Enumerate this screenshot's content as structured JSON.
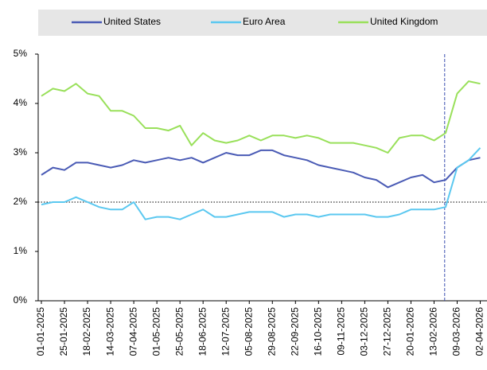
{
  "chart_data": {
    "type": "line",
    "x": [
      "2025-01-01",
      "2025-01-13",
      "2025-01-25",
      "2025-02-06",
      "2025-02-18",
      "2025-03-02",
      "2025-03-14",
      "2025-03-26",
      "2025-04-07",
      "2025-04-19",
      "2025-05-01",
      "2025-05-13",
      "2025-05-25",
      "2025-06-06",
      "2025-06-18",
      "2025-06-30",
      "2025-07-12",
      "2025-07-24",
      "2025-08-05",
      "2025-08-17",
      "2025-08-29",
      "2025-09-10",
      "2025-09-22",
      "2025-10-04",
      "2025-10-16",
      "2025-10-28",
      "2025-11-09",
      "2025-11-21",
      "2025-12-03",
      "2025-12-15",
      "2025-12-27",
      "2026-01-08",
      "2026-01-20",
      "2026-02-01",
      "2026-02-13",
      "2026-02-25",
      "2026-03-09",
      "2026-03-21",
      "2026-04-02"
    ],
    "series": [
      {
        "name": "United States",
        "color": "#4a5bb5",
        "values": [
          2.55,
          2.7,
          2.65,
          2.8,
          2.8,
          2.75,
          2.7,
          2.75,
          2.85,
          2.8,
          2.85,
          2.9,
          2.85,
          2.9,
          2.8,
          2.9,
          3.0,
          2.95,
          2.95,
          3.05,
          3.05,
          2.95,
          2.9,
          2.85,
          2.75,
          2.7,
          2.65,
          2.6,
          2.5,
          2.45,
          2.3,
          2.4,
          2.5,
          2.55,
          2.4,
          2.45,
          2.7,
          2.85,
          2.9
        ]
      },
      {
        "name": "Euro Area",
        "color": "#5bc8f0",
        "values": [
          1.95,
          2.0,
          2.0,
          2.1,
          2.0,
          1.9,
          1.85,
          1.85,
          2.0,
          1.65,
          1.7,
          1.7,
          1.65,
          1.75,
          1.85,
          1.7,
          1.7,
          1.75,
          1.8,
          1.8,
          1.8,
          1.7,
          1.75,
          1.75,
          1.7,
          1.75,
          1.75,
          1.75,
          1.75,
          1.7,
          1.7,
          1.75,
          1.85,
          1.85,
          1.85,
          1.9,
          2.7,
          2.85,
          3.1
        ]
      },
      {
        "name": "United Kingdom",
        "color": "#99e05a",
        "values": [
          4.15,
          4.3,
          4.25,
          4.4,
          4.2,
          4.15,
          3.85,
          3.85,
          3.75,
          3.5,
          3.5,
          3.45,
          3.55,
          3.15,
          3.4,
          3.25,
          3.2,
          3.25,
          3.35,
          3.25,
          3.35,
          3.35,
          3.3,
          3.35,
          3.3,
          3.2,
          3.2,
          3.2,
          3.15,
          3.1,
          3.0,
          3.3,
          3.35,
          3.35,
          3.25,
          3.4,
          4.2,
          4.45,
          4.4
        ]
      }
    ],
    "xlim": [
      "2025-01-01",
      "2026-04-09"
    ],
    "xticks": [
      {
        "value": "2025-01-01",
        "label": "01-01-2025"
      },
      {
        "value": "2025-01-25",
        "label": "25-01-2025"
      },
      {
        "value": "2025-02-18",
        "label": "18-02-2025"
      },
      {
        "value": "2025-03-14",
        "label": "14-03-2025"
      },
      {
        "value": "2025-04-07",
        "label": "07-04-2025"
      },
      {
        "value": "2025-05-01",
        "label": "01-05-2025"
      },
      {
        "value": "2025-05-25",
        "label": "25-05-2025"
      },
      {
        "value": "2025-06-18",
        "label": "18-06-2025"
      },
      {
        "value": "2025-07-12",
        "label": "12-07-2025"
      },
      {
        "value": "2025-08-05",
        "label": "05-08-2025"
      },
      {
        "value": "2025-08-29",
        "label": "29-08-2025"
      },
      {
        "value": "2025-09-22",
        "label": "22-09-2025"
      },
      {
        "value": "2025-10-16",
        "label": "16-10-2025"
      },
      {
        "value": "2025-11-09",
        "label": "09-11-2025"
      },
      {
        "value": "2025-12-03",
        "label": "03-12-2025"
      },
      {
        "value": "2025-12-27",
        "label": "27-12-2025"
      },
      {
        "value": "2026-01-20",
        "label": "20-01-2026"
      },
      {
        "value": "2026-02-13",
        "label": "13-02-2026"
      },
      {
        "value": "2026-03-09",
        "label": "09-03-2026"
      },
      {
        "value": "2026-04-02",
        "label": "02-04-2026"
      }
    ],
    "ylim": [
      0,
      5
    ],
    "yticks": [
      {
        "value": 0,
        "label": "0%"
      },
      {
        "value": 1,
        "label": "1%"
      },
      {
        "value": 2,
        "label": "2%"
      },
      {
        "value": 3,
        "label": "3%"
      },
      {
        "value": 4,
        "label": "4%"
      },
      {
        "value": 5,
        "label": "5%"
      }
    ],
    "reference_lines": {
      "x": "2026-02-24",
      "y": 2
    },
    "legend": "top"
  }
}
